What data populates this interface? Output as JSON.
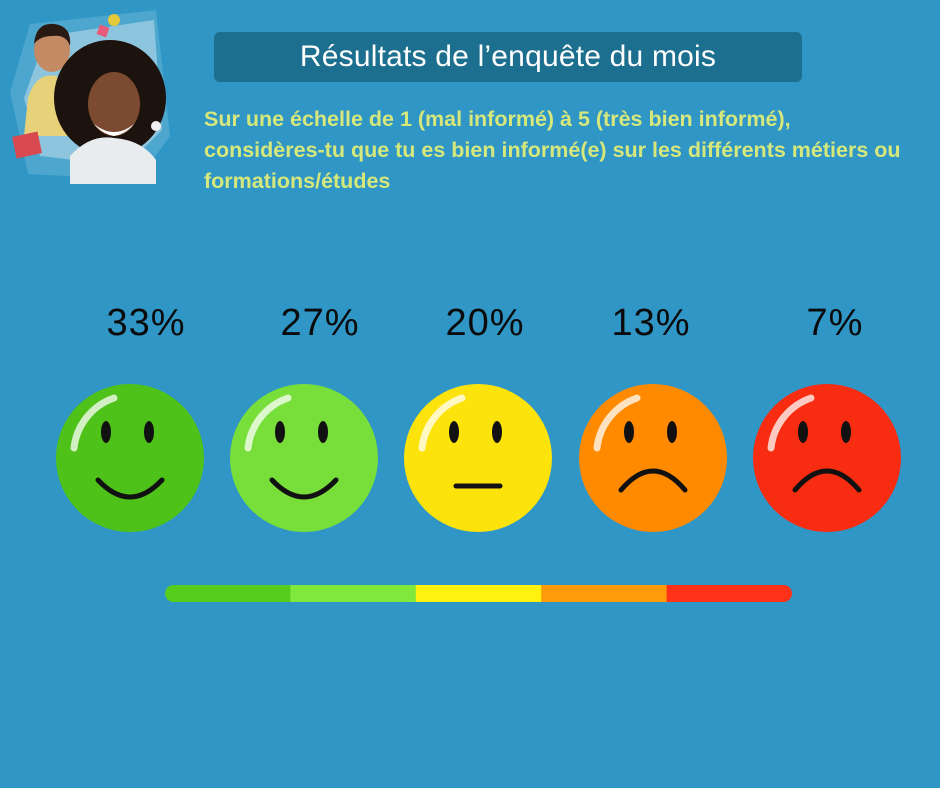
{
  "header": {
    "title": "Résultats de l’enquête du mois",
    "question": "Sur une échelle de 1 (mal informé) à 5 (très bien informé), considères-tu que tu es bien informé(e) sur les différents métiers ou formations/études"
  },
  "photo": {
    "icon": "students-photo-icon"
  },
  "chart_data": {
    "type": "bar",
    "categories": [
      "very-happy",
      "happy",
      "neutral",
      "sad",
      "very-sad"
    ],
    "values": [
      33,
      27,
      20,
      13,
      7
    ],
    "labels": [
      "33%",
      "27%",
      "20%",
      "13%",
      "7%"
    ],
    "colors": [
      "#4fc21a",
      "#78de3a",
      "#fde30c",
      "#ff8a00",
      "#f82c10"
    ],
    "scale_colors": [
      "#56cc1d",
      "#7fe83a",
      "#fff20f",
      "#ff9a0a",
      "#ff3118"
    ],
    "icons": [
      "very-happy-face-icon",
      "happy-face-icon",
      "neutral-face-icon",
      "sad-face-icon",
      "very-sad-face-icon"
    ]
  }
}
